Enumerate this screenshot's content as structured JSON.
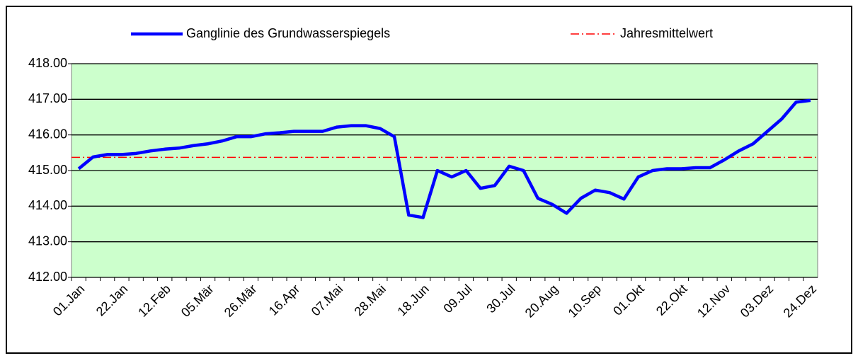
{
  "chart_data": {
    "type": "line",
    "categories": [
      "01.Jan",
      null,
      null,
      "22.Jan",
      null,
      null,
      "12.Feb",
      null,
      null,
      "05.Mär",
      null,
      null,
      "26.Mär",
      null,
      null,
      "16.Apr",
      null,
      null,
      "07.Mai",
      null,
      null,
      "28.Mai",
      null,
      null,
      "18.Jun",
      null,
      null,
      "09.Jul",
      null,
      null,
      "30.Jul",
      null,
      null,
      "20.Aug",
      null,
      null,
      "10.Sep",
      null,
      null,
      "01.Okt",
      null,
      null,
      "22.Okt",
      null,
      null,
      "12.Nov",
      null,
      null,
      "03.Dez",
      null,
      null,
      "24.Dez"
    ],
    "series": [
      {
        "name": "Ganglinie des Grundwasserspiegels",
        "color": "#0000ff",
        "values": [
          415.05,
          415.38,
          415.45,
          415.45,
          415.48,
          415.55,
          415.6,
          415.63,
          415.7,
          415.75,
          415.83,
          415.95,
          415.95,
          416.03,
          416.06,
          416.1,
          416.1,
          416.1,
          416.22,
          416.26,
          416.26,
          416.18,
          415.95,
          413.75,
          413.68,
          415.0,
          414.82,
          415.0,
          414.5,
          414.58,
          415.12,
          415.0,
          414.22,
          414.05,
          413.8,
          414.22,
          414.45,
          414.38,
          414.2,
          414.82,
          415.0,
          415.05,
          415.05,
          415.08,
          415.08,
          415.3,
          415.55,
          415.75,
          416.1,
          416.45,
          416.92,
          416.97
        ]
      }
    ],
    "mean": {
      "name": "Jahresmittelwert",
      "color": "#ff0000",
      "value": 415.37
    },
    "ylim": [
      412,
      418
    ],
    "yticks": [
      {
        "value": 412,
        "label": "412.00"
      },
      {
        "value": 413,
        "label": "413.00"
      },
      {
        "value": 414,
        "label": "414.00"
      },
      {
        "value": 415,
        "label": "415.00"
      },
      {
        "value": 416,
        "label": "416.00"
      },
      {
        "value": 417,
        "label": "417.00"
      },
      {
        "value": 418,
        "label": "418.00"
      }
    ],
    "grid": true,
    "legend": "top"
  }
}
